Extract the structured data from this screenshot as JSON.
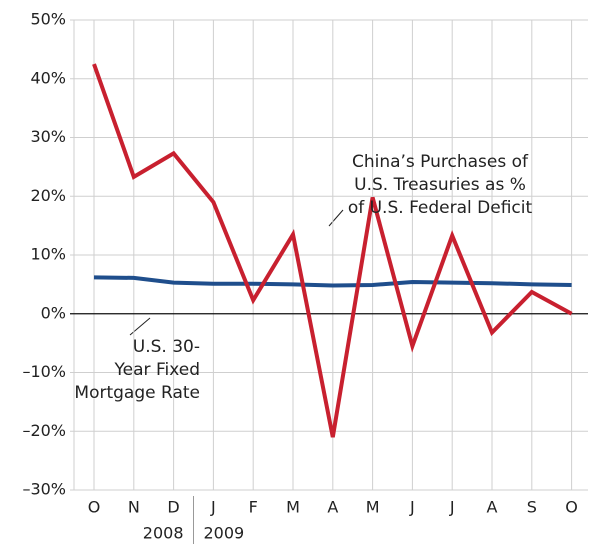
{
  "chart_data": {
    "type": "line",
    "categories": [
      "O",
      "N",
      "D",
      "J",
      "F",
      "M",
      "A",
      "M",
      "J",
      "J",
      "A",
      "S",
      "O"
    ],
    "year_labels": [
      "2008",
      "2009"
    ],
    "series": [
      {
        "name_lines": [
          "China’s Purchases of",
          "U.S. Treasuries as %",
          "of U.S. Federal Deficit"
        ],
        "color": "#c8202f",
        "values": [
          42.5,
          23.3,
          27.3,
          19,
          2.3,
          13.5,
          -21,
          19.8,
          -5.5,
          13.3,
          -3.2,
          3.7,
          0
        ]
      },
      {
        "name_lines": [
          "U.S. 30-",
          "Year Fixed",
          "Mortgage Rate"
        ],
        "color": "#1f4e8c",
        "values": [
          6.2,
          6.1,
          5.3,
          5.1,
          5.1,
          5.0,
          4.8,
          4.9,
          5.4,
          5.3,
          5.2,
          5.0,
          4.9
        ]
      }
    ],
    "ylim": [
      -30,
      50
    ],
    "yticks": [
      {
        "value": -30,
        "label": "–30%"
      },
      {
        "value": -20,
        "label": "–20%"
      },
      {
        "value": -10,
        "label": "–10%"
      },
      {
        "value": 0,
        "label": "0%"
      },
      {
        "value": 10,
        "label": "10%"
      },
      {
        "value": 20,
        "label": "20%"
      },
      {
        "value": 30,
        "label": "30%"
      },
      {
        "value": 40,
        "label": "40%"
      },
      {
        "value": 50,
        "label": "50%"
      }
    ],
    "grid": true
  }
}
